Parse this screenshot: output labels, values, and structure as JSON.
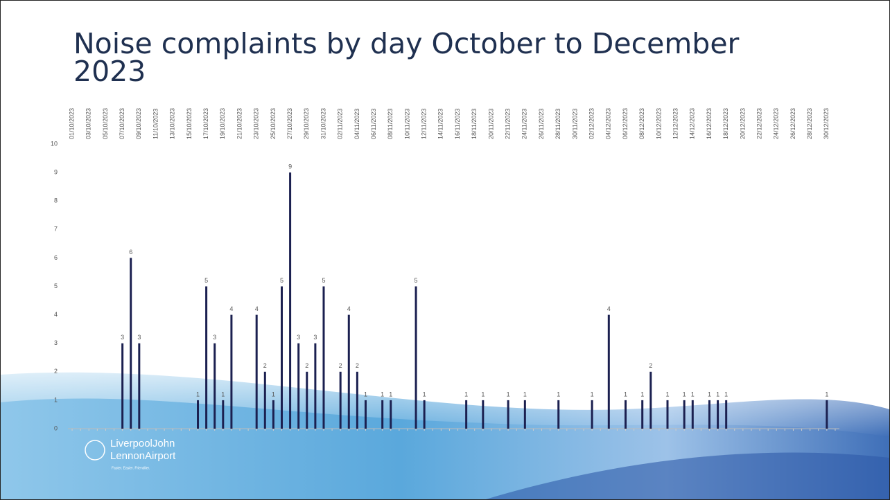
{
  "chart_data": {
    "type": "bar",
    "title": "Noise complaints by day October to December 2023",
    "categories": [
      "01/10/2023",
      null,
      "03/10/2023",
      null,
      "05/10/2023",
      null,
      "07/10/2023",
      null,
      "09/10/2023",
      null,
      "11/10/2023",
      null,
      "13/10/2023",
      null,
      "15/10/2023",
      null,
      "17/10/2023",
      null,
      "19/10/2023",
      null,
      "21/10/2023",
      null,
      "23/10/2023",
      null,
      "25/10/2023",
      null,
      "27/10/2023",
      null,
      "29/10/2023",
      null,
      "31/10/2023",
      null,
      "02/11/2023",
      null,
      "04/11/2023",
      null,
      "06/11/2023",
      null,
      "08/11/2023",
      null,
      "10/11/2023",
      null,
      "12/11/2023",
      null,
      "14/11/2023",
      null,
      "16/11/2023",
      null,
      "18/11/2023",
      null,
      "20/11/2023",
      null,
      "22/11/2023",
      null,
      "24/11/2023",
      null,
      "26/11/2023",
      null,
      "28/11/2023",
      null,
      "30/11/2023",
      null,
      "02/12/2023",
      null,
      "04/12/2023",
      null,
      "06/12/2023",
      null,
      "08/12/2023",
      null,
      "10/12/2023",
      null,
      "12/12/2023",
      null,
      "14/12/2023",
      null,
      "16/12/2023",
      null,
      "18/12/2023",
      null,
      "20/12/2023",
      null,
      "22/12/2023",
      null,
      "24/12/2023",
      null,
      "26/12/2023",
      null,
      "28/12/2023",
      null,
      "30/12/2023",
      null
    ],
    "values": [
      0,
      0,
      0,
      0,
      0,
      0,
      3,
      6,
      3,
      0,
      0,
      0,
      0,
      0,
      0,
      1,
      5,
      3,
      1,
      4,
      0,
      0,
      4,
      2,
      1,
      5,
      9,
      3,
      2,
      3,
      5,
      0,
      2,
      4,
      2,
      1,
      0,
      1,
      1,
      0,
      0,
      5,
      1,
      0,
      0,
      0,
      0,
      1,
      0,
      1,
      0,
      0,
      1,
      0,
      1,
      0,
      0,
      0,
      1,
      0,
      0,
      0,
      1,
      0,
      4,
      0,
      1,
      0,
      1,
      2,
      0,
      1,
      0,
      1,
      1,
      0,
      1,
      1,
      1,
      0,
      0,
      0,
      0,
      0,
      0,
      0,
      0,
      0,
      0,
      0,
      1,
      0
    ],
    "color": "#1b2050",
    "ylim": [
      0,
      10
    ],
    "yticks": [
      0,
      1,
      2,
      3,
      4,
      5,
      6,
      7,
      8,
      9,
      10
    ],
    "grid": false
  },
  "logo": {
    "line1": "LiverpoolJohn",
    "line2": "LennonAirport",
    "tagline": "Faster. Easier. Friendlier."
  }
}
